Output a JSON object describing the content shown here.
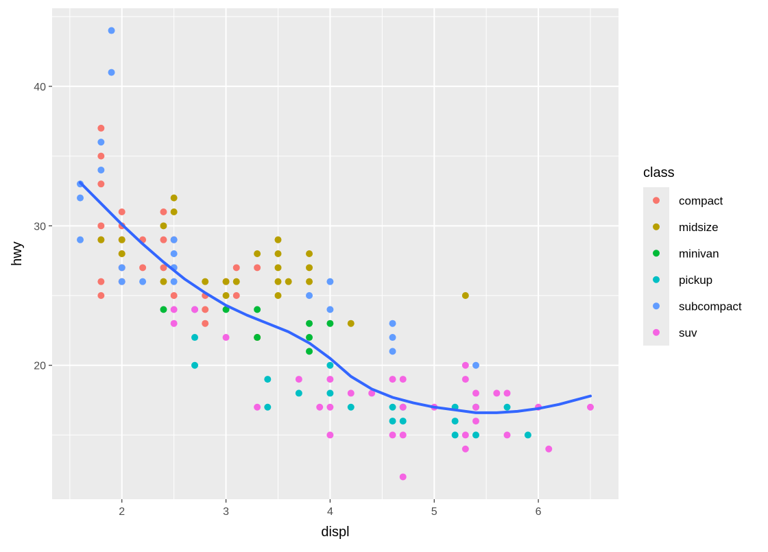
{
  "chart_data": {
    "type": "scatter",
    "xlabel": "displ",
    "ylabel": "hwy",
    "xlim": [
      1.33,
      6.77
    ],
    "ylim": [
      10.4,
      45.6
    ],
    "x_ticks": [
      2,
      3,
      4,
      5,
      6
    ],
    "y_ticks": [
      20,
      30,
      40
    ],
    "grid": true,
    "legend": {
      "title": "class",
      "position": "right",
      "items": [
        {
          "name": "compact",
          "color": "#F8766D"
        },
        {
          "name": "midsize",
          "color": "#B79F00"
        },
        {
          "name": "minivan",
          "color": "#00BA38"
        },
        {
          "name": "pickup",
          "color": "#00BFC4"
        },
        {
          "name": "subcompact",
          "color": "#619CFF"
        },
        {
          "name": "suv",
          "color": "#F564E3"
        }
      ]
    },
    "series": [
      {
        "name": "compact",
        "points": [
          [
            1.8,
            37
          ],
          [
            1.8,
            35
          ],
          [
            1.8,
            33
          ],
          [
            1.8,
            30
          ],
          [
            1.8,
            29
          ],
          [
            1.8,
            26
          ],
          [
            1.8,
            25
          ],
          [
            2.0,
            31
          ],
          [
            2.0,
            30
          ],
          [
            2.0,
            29
          ],
          [
            2.0,
            28
          ],
          [
            2.0,
            27
          ],
          [
            2.0,
            26
          ],
          [
            2.2,
            29
          ],
          [
            2.2,
            27
          ],
          [
            2.4,
            31
          ],
          [
            2.4,
            29
          ],
          [
            2.4,
            27
          ],
          [
            2.5,
            29
          ],
          [
            2.5,
            27
          ],
          [
            2.5,
            25
          ],
          [
            2.8,
            25
          ],
          [
            2.8,
            24
          ],
          [
            2.8,
            23
          ],
          [
            3.0,
            26
          ],
          [
            3.1,
            27
          ],
          [
            3.1,
            25
          ],
          [
            3.3,
            27
          ],
          [
            3.3,
            22
          ]
        ]
      },
      {
        "name": "midsize",
        "points": [
          [
            1.8,
            29
          ],
          [
            2.0,
            29
          ],
          [
            2.0,
            28
          ],
          [
            2.4,
            30
          ],
          [
            2.4,
            26
          ],
          [
            2.5,
            32
          ],
          [
            2.5,
            31
          ],
          [
            2.8,
            26
          ],
          [
            3.0,
            26
          ],
          [
            3.0,
            25
          ],
          [
            3.1,
            26
          ],
          [
            3.3,
            28
          ],
          [
            3.3,
            22
          ],
          [
            3.5,
            29
          ],
          [
            3.5,
            28
          ],
          [
            3.5,
            27
          ],
          [
            3.5,
            26
          ],
          [
            3.5,
            25
          ],
          [
            3.6,
            26
          ],
          [
            3.8,
            28
          ],
          [
            3.8,
            27
          ],
          [
            3.8,
            26
          ],
          [
            4.2,
            23
          ],
          [
            5.3,
            25
          ]
        ]
      },
      {
        "name": "minivan",
        "points": [
          [
            2.4,
            24
          ],
          [
            3.0,
            24
          ],
          [
            3.3,
            24
          ],
          [
            3.3,
            22
          ],
          [
            3.8,
            23
          ],
          [
            3.8,
            22
          ],
          [
            3.8,
            21
          ],
          [
            4.0,
            23
          ]
        ]
      },
      {
        "name": "pickup",
        "points": [
          [
            2.7,
            22
          ],
          [
            2.7,
            20
          ],
          [
            3.4,
            19
          ],
          [
            3.4,
            17
          ],
          [
            3.7,
            18
          ],
          [
            4.0,
            20
          ],
          [
            4.0,
            18
          ],
          [
            4.2,
            17
          ],
          [
            4.6,
            17
          ],
          [
            4.6,
            16
          ],
          [
            4.7,
            17
          ],
          [
            4.7,
            16
          ],
          [
            5.2,
            17
          ],
          [
            5.2,
            16
          ],
          [
            5.2,
            15
          ],
          [
            5.4,
            17
          ],
          [
            5.4,
            15
          ],
          [
            5.7,
            17
          ],
          [
            5.9,
            15
          ]
        ]
      },
      {
        "name": "subcompact",
        "points": [
          [
            1.6,
            33
          ],
          [
            1.6,
            32
          ],
          [
            1.6,
            29
          ],
          [
            1.8,
            36
          ],
          [
            1.8,
            34
          ],
          [
            1.9,
            44
          ],
          [
            1.9,
            41
          ],
          [
            2.0,
            27
          ],
          [
            2.0,
            26
          ],
          [
            2.2,
            26
          ],
          [
            2.5,
            29
          ],
          [
            2.5,
            28
          ],
          [
            2.5,
            27
          ],
          [
            2.5,
            26
          ],
          [
            2.7,
            24
          ],
          [
            3.8,
            25
          ],
          [
            4.0,
            26
          ],
          [
            4.0,
            24
          ],
          [
            4.6,
            23
          ],
          [
            4.6,
            22
          ],
          [
            4.6,
            21
          ],
          [
            5.4,
            20
          ]
        ]
      },
      {
        "name": "suv",
        "points": [
          [
            2.5,
            24
          ],
          [
            2.5,
            23
          ],
          [
            2.7,
            24
          ],
          [
            3.0,
            22
          ],
          [
            3.3,
            17
          ],
          [
            3.7,
            19
          ],
          [
            3.9,
            17
          ],
          [
            4.0,
            19
          ],
          [
            4.0,
            17
          ],
          [
            4.0,
            15
          ],
          [
            4.2,
            18
          ],
          [
            4.4,
            18
          ],
          [
            4.6,
            19
          ],
          [
            4.6,
            15
          ],
          [
            4.7,
            19
          ],
          [
            4.7,
            17
          ],
          [
            4.7,
            15
          ],
          [
            4.7,
            12
          ],
          [
            5.0,
            17
          ],
          [
            5.3,
            20
          ],
          [
            5.3,
            19
          ],
          [
            5.3,
            15
          ],
          [
            5.3,
            14
          ],
          [
            5.4,
            18
          ],
          [
            5.4,
            17
          ],
          [
            5.4,
            16
          ],
          [
            5.6,
            18
          ],
          [
            5.7,
            18
          ],
          [
            5.7,
            15
          ],
          [
            6.0,
            17
          ],
          [
            6.1,
            14
          ],
          [
            6.5,
            17
          ]
        ]
      }
    ],
    "smooth": {
      "color": "#3366FF",
      "points": [
        [
          1.6,
          33.1
        ],
        [
          1.8,
          31.6
        ],
        [
          2.0,
          30.1
        ],
        [
          2.2,
          28.7
        ],
        [
          2.4,
          27.4
        ],
        [
          2.6,
          26.2
        ],
        [
          2.8,
          25.2
        ],
        [
          3.0,
          24.3
        ],
        [
          3.2,
          23.6
        ],
        [
          3.4,
          23.0
        ],
        [
          3.6,
          22.4
        ],
        [
          3.8,
          21.6
        ],
        [
          4.0,
          20.5
        ],
        [
          4.2,
          19.2
        ],
        [
          4.4,
          18.3
        ],
        [
          4.6,
          17.7
        ],
        [
          4.8,
          17.3
        ],
        [
          5.0,
          17.0
        ],
        [
          5.2,
          16.8
        ],
        [
          5.4,
          16.6
        ],
        [
          5.6,
          16.6
        ],
        [
          5.8,
          16.7
        ],
        [
          6.0,
          16.9
        ],
        [
          6.2,
          17.2
        ],
        [
          6.5,
          17.8
        ]
      ]
    }
  }
}
